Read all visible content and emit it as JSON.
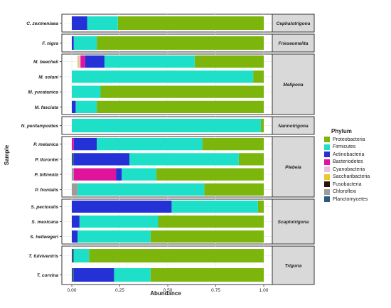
{
  "chart_data": {
    "type": "bar",
    "orientation": "horizontal",
    "stacked": true,
    "xlabel": "Abundance",
    "ylabel": "Sample",
    "xlim": [
      0,
      1
    ],
    "x_ticks": [
      "0.00",
      "0.25",
      "0.50",
      "0.75",
      "1.00"
    ],
    "legend_title": "Phylum",
    "legend_position": "right",
    "grid": true,
    "phyla": [
      {
        "name": "Proteobacteria",
        "color": "#7cb50c"
      },
      {
        "name": "Firmicutes",
        "color": "#1ee0c8"
      },
      {
        "name": "Actinobacteria",
        "color": "#2431d6"
      },
      {
        "name": "Bacteriodetes",
        "color": "#e0149a"
      },
      {
        "name": "Cyanobacteria",
        "color": "#e4c2e8"
      },
      {
        "name": "Saccharibacteria",
        "color": "#e8c82a"
      },
      {
        "name": "Fusobacteria",
        "color": "#2a1208"
      },
      {
        "name": "Chloroflexi",
        "color": "#9c9c9c"
      },
      {
        "name": "Planctomycetes",
        "color": "#2a5a80"
      }
    ],
    "groups": [
      {
        "name": "Cephalotrigona",
        "samples": [
          {
            "name": "C. zexmeniaea",
            "values": [
              0.76,
              0.16,
              0.08,
              0,
              0,
              0,
              0,
              0,
              0
            ]
          }
        ]
      },
      {
        "name": "Frieseomelita",
        "samples": [
          {
            "name": "F. nigra",
            "values": [
              0.87,
              0.12,
              0.01,
              0,
              0,
              0,
              0,
              0,
              0
            ]
          }
        ]
      },
      {
        "name": "Melipona",
        "samples": [
          {
            "name": "M. beecheii",
            "values": [
              0.36,
              0.47,
              0.1,
              0.025,
              0.01,
              0.005,
              0,
              0,
              0
            ]
          },
          {
            "name": "M. solani",
            "values": [
              0.055,
              0.945,
              0,
              0,
              0,
              0,
              0,
              0,
              0
            ]
          },
          {
            "name": "M. yucatanica",
            "values": [
              0.85,
              0.15,
              0,
              0,
              0,
              0,
              0,
              0,
              0
            ]
          },
          {
            "name": "M. fasciata",
            "values": [
              0.87,
              0.11,
              0.02,
              0,
              0,
              0,
              0,
              0,
              0
            ]
          }
        ]
      },
      {
        "name": "Nannotrigona",
        "samples": [
          {
            "name": "N. perilampoides",
            "values": [
              0.015,
              0.985,
              0,
              0,
              0,
              0,
              0,
              0,
              0
            ]
          }
        ]
      },
      {
        "name": "Plebeia",
        "samples": [
          {
            "name": "P. melanica",
            "values": [
              0.32,
              0.55,
              0.12,
              0.01,
              0,
              0,
              0,
              0,
              0
            ]
          },
          {
            "name": "P. llorontei",
            "values": [
              0.13,
              0.57,
              0.29,
              0,
              0,
              0,
              0,
              0,
              0.01
            ]
          },
          {
            "name": "P. bilineata",
            "values": [
              0.56,
              0.18,
              0.03,
              0.22,
              0,
              0,
              0,
              0.01,
              0
            ]
          },
          {
            "name": "P. frontalis",
            "values": [
              0.31,
              0.66,
              0,
              0,
              0,
              0,
              0,
              0.03,
              0
            ]
          }
        ]
      },
      {
        "name": "Scaptotrigona",
        "samples": [
          {
            "name": "S. pectoralis",
            "values": [
              0.03,
              0.45,
              0.52,
              0,
              0,
              0,
              0,
              0,
              0
            ]
          },
          {
            "name": "S. mexicana",
            "values": [
              0.55,
              0.41,
              0.04,
              0,
              0,
              0,
              0,
              0,
              0
            ]
          },
          {
            "name": "S. hellwegeri",
            "values": [
              0.59,
              0.38,
              0.03,
              0,
              0,
              0,
              0,
              0,
              0
            ]
          }
        ]
      },
      {
        "name": "Trigona",
        "samples": [
          {
            "name": "T. fulviventris",
            "values": [
              0.91,
              0.08,
              0,
              0,
              0,
              0,
              0,
              0,
              0.01
            ]
          },
          {
            "name": "T. corvina",
            "values": [
              0.59,
              0.19,
              0.21,
              0,
              0,
              0,
              0,
              0,
              0.01
            ]
          }
        ]
      }
    ]
  }
}
